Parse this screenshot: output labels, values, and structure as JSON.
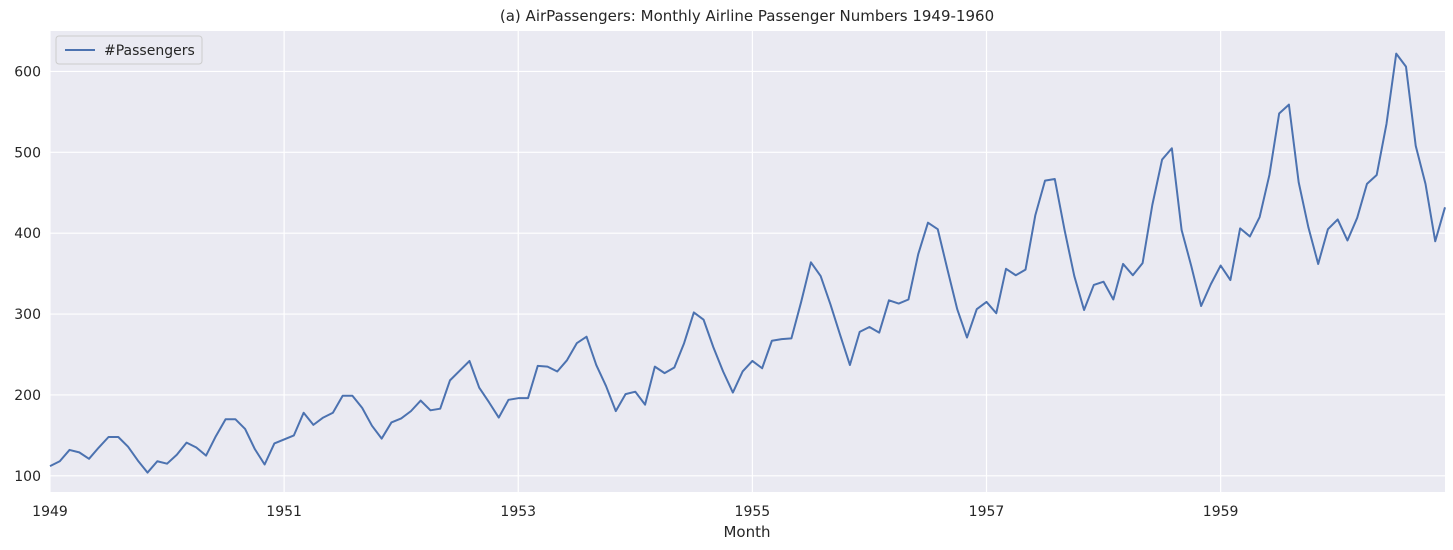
{
  "chart_data": {
    "type": "line",
    "title": "(a) AirPassengers: Monthly Airline Passenger Numbers 1949-1960",
    "xlabel": "Month",
    "ylabel": "",
    "x_start": "1949-01",
    "x_end": "1960-12",
    "xlim": [
      "1949-01",
      "1960-12"
    ],
    "ylim": [
      80,
      650
    ],
    "x_ticks": [
      "1949",
      "1951",
      "1953",
      "1955",
      "1957",
      "1959"
    ],
    "y_ticks": [
      100,
      200,
      300,
      400,
      500,
      600
    ],
    "grid": true,
    "legend_position": "top-left",
    "background_color": "#eaeaf2",
    "grid_color": "#ffffff",
    "series": [
      {
        "name": "#Passengers",
        "color": "#4c72b0",
        "values": [
          112,
          118,
          132,
          129,
          121,
          135,
          148,
          148,
          136,
          119,
          104,
          118,
          115,
          126,
          141,
          135,
          125,
          149,
          170,
          170,
          158,
          133,
          114,
          140,
          145,
          150,
          178,
          163,
          172,
          178,
          199,
          199,
          184,
          162,
          146,
          166,
          171,
          180,
          193,
          181,
          183,
          218,
          230,
          242,
          209,
          191,
          172,
          194,
          196,
          196,
          236,
          235,
          229,
          243,
          264,
          272,
          237,
          211,
          180,
          201,
          204,
          188,
          235,
          227,
          234,
          264,
          302,
          293,
          259,
          229,
          203,
          229,
          242,
          233,
          267,
          269,
          270,
          315,
          364,
          347,
          312,
          274,
          237,
          278,
          284,
          277,
          317,
          313,
          318,
          374,
          413,
          405,
          355,
          306,
          271,
          306,
          315,
          301,
          356,
          348,
          355,
          422,
          465,
          467,
          404,
          347,
          305,
          336,
          340,
          318,
          362,
          348,
          363,
          435,
          491,
          505,
          404,
          359,
          310,
          337,
          360,
          342,
          406,
          396,
          420,
          472,
          548,
          559,
          463,
          407,
          362,
          405,
          417,
          391,
          419,
          461,
          472,
          535,
          622,
          606,
          508,
          461,
          390,
          432
        ]
      }
    ]
  }
}
